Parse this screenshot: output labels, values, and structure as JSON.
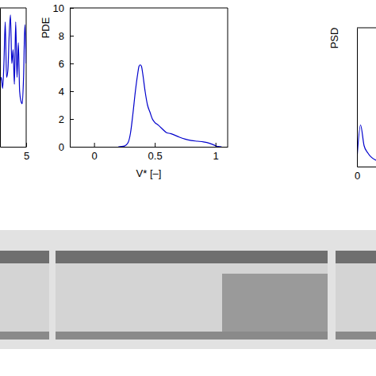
{
  "chart_data": [
    {
      "type": "line",
      "x": [
        4.8,
        4.81,
        4.82,
        4.83,
        4.84,
        4.85,
        4.86,
        4.87,
        4.88,
        4.89,
        4.9,
        4.91,
        4.92,
        4.93,
        4.94,
        4.95,
        4.96,
        4.97,
        4.98,
        4.99,
        5.0
      ],
      "values": [
        0.45,
        0.5,
        0.42,
        0.6,
        0.9,
        0.5,
        0.55,
        0.8,
        0.95,
        0.6,
        0.7,
        0.45,
        0.9,
        0.5,
        0.75,
        0.4,
        0.33,
        0.31,
        0.5,
        0.88,
        0.6
      ],
      "color": "#0000cc",
      "xlim": [
        4.8,
        5
      ],
      "xticks": [
        5
      ],
      "ylim": [
        0,
        1
      ],
      "tick_labels": "x"
    },
    {
      "type": "line",
      "ylabel": "PDE",
      "xlabel": "V* [–]",
      "x": [
        0.2,
        0.25,
        0.28,
        0.3,
        0.32,
        0.34,
        0.36,
        0.37,
        0.38,
        0.39,
        0.4,
        0.42,
        0.44,
        0.46,
        0.48,
        0.5,
        0.53,
        0.56,
        0.6,
        0.63,
        0.66,
        0.7,
        0.75,
        0.8,
        0.85,
        0.9,
        0.95,
        0.98,
        1.0,
        1.02,
        1.05
      ],
      "values": [
        0.0,
        0.05,
        0.3,
        1.0,
        2.4,
        4.0,
        5.3,
        5.8,
        5.9,
        5.8,
        5.3,
        4.0,
        3.0,
        2.5,
        2.0,
        1.75,
        1.55,
        1.3,
        1.0,
        0.95,
        0.85,
        0.7,
        0.55,
        0.45,
        0.4,
        0.35,
        0.25,
        0.15,
        0.08,
        0.02,
        0.0
      ],
      "color": "#0000cc",
      "xlim": [
        -0.2,
        1.1
      ],
      "xticks": [
        0,
        0.5,
        1
      ],
      "ylim": [
        0,
        10
      ],
      "yticks": [
        0,
        2,
        4,
        6,
        8,
        10
      ]
    },
    {
      "type": "line",
      "ylabel": "PSD",
      "x": [
        0,
        0.01,
        0.02,
        0.03,
        0.05,
        0.08
      ],
      "values": [
        0.05,
        0.3,
        0.15,
        0.1,
        0.05,
        0.03
      ],
      "color": "#0000cc",
      "xlim": [
        0,
        1
      ],
      "xticks": [
        0
      ],
      "ylim": [
        0,
        1
      ],
      "tick_labels": "x"
    }
  ]
}
